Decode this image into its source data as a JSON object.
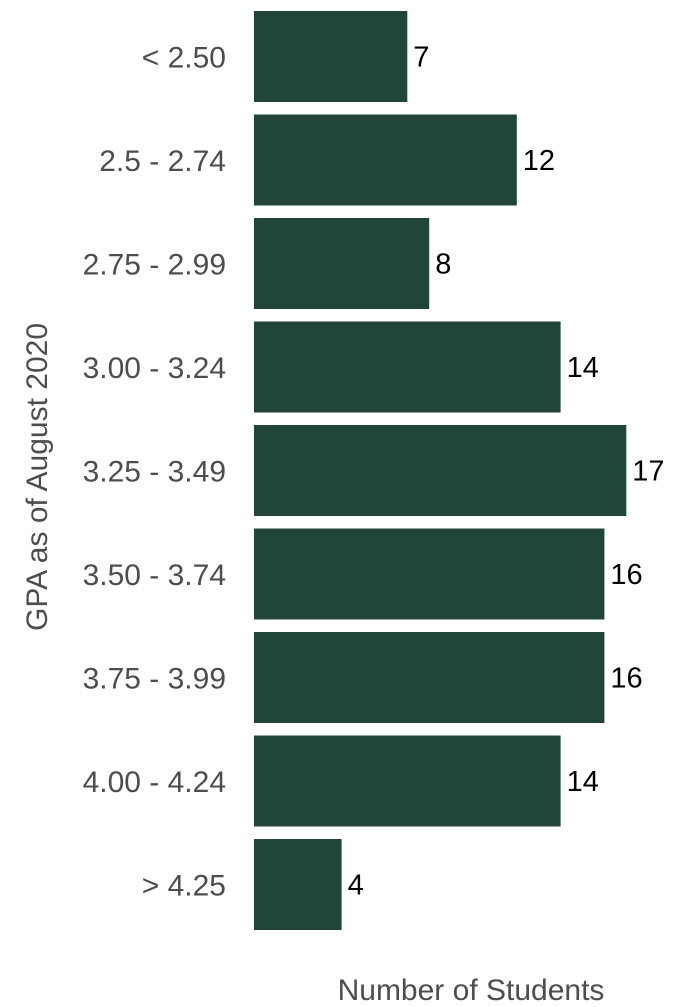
{
  "chart_data": {
    "type": "bar",
    "orientation": "horizontal",
    "categories": [
      "< 2.50",
      "2.5 - 2.74",
      "2.75 - 2.99",
      "3.00 - 3.24",
      "3.25 - 3.49",
      "3.50 - 3.74",
      "3.75 - 3.99",
      "4.00 - 4.24",
      "> 4.25"
    ],
    "values": [
      7,
      12,
      8,
      14,
      17,
      16,
      16,
      14,
      4
    ],
    "xlabel": "Number of Students",
    "ylabel": "GPA as of August 2020",
    "xlim": [
      0,
      17
    ],
    "grid": false,
    "legend": "none",
    "data_labels": true
  },
  "colors": {
    "bar": "#214537",
    "label_text": "#4d4d4d",
    "value_text": "#000000"
  }
}
